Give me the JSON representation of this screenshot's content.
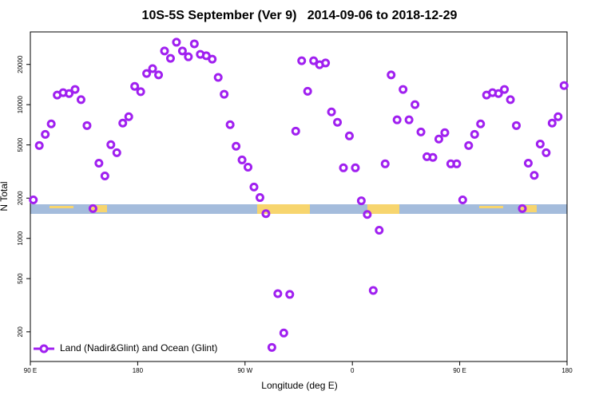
{
  "chart_data": {
    "type": "scatter",
    "title": "10S-5S September (Ver 9)   2014-09-06 to 2018-12-29",
    "x_label": "Longitude (deg E)",
    "y_label": "N Total",
    "log_y": true,
    "legend_corner": "bottom left",
    "xlim": [
      90,
      540
    ],
    "ylim": [
      120,
      35000
    ],
    "xticks": [
      {
        "value": 90,
        "label": "90 E"
      },
      180,
      {
        "value": 270,
        "label": "90 W"
      },
      {
        "value": 360,
        "label": "0"
      },
      {
        "value": 450,
        "label": "90 E"
      },
      {
        "value": 540,
        "label": "180"
      }
    ],
    "yticks": [
      200,
      500,
      1000,
      2000,
      5000,
      10000,
      20000
    ],
    "series": [
      {
        "name": "Land (Nadir&Glint) and Ocean (Glint)",
        "color": "#a020f0",
        "x": [
          92.5,
          97.5,
          102.5,
          107.5,
          112.5,
          117.5,
          122.5,
          127.5,
          132.5,
          137.5,
          142.5,
          147.5,
          152.5,
          157.5,
          162.5,
          167.5,
          172.5,
          177.5,
          182.5,
          187.5,
          192.5,
          197.5,
          202.5,
          207.5,
          212.5,
          217.5,
          222.5,
          227.5,
          232.5,
          237.5,
          242.5,
          247.5,
          252.5,
          257.5,
          262.5,
          267.5,
          272.5,
          277.5,
          282.5,
          287.5,
          292.5,
          297.5,
          302.5,
          307.5,
          312.5,
          317.5,
          322.5,
          327.5,
          332.5,
          337.5,
          342.5,
          347.5,
          352.5,
          357.5,
          362.5,
          367.5,
          372.5,
          377.5,
          382.5,
          387.5,
          392.5,
          397.5,
          402.5,
          407.5,
          412.5,
          417.5,
          422.5,
          427.5,
          432.5,
          437.5,
          442.5,
          447.5,
          452.5,
          457.5,
          462.5,
          467.5,
          472.5,
          477.5,
          482.5,
          487.5,
          492.5,
          497.5,
          502.5,
          507.5,
          512.5,
          517.5,
          522.5,
          527.5,
          532.5,
          537.5
        ],
        "values": [
          1940,
          4950,
          6000,
          7180,
          11800,
          12300,
          12100,
          13000,
          10900,
          6980,
          1670,
          3650,
          2930,
          5020,
          4370,
          7280,
          8130,
          13700,
          12500,
          17100,
          18600,
          16700,
          25200,
          22200,
          29300,
          25200,
          22800,
          28500,
          23800,
          23200,
          21900,
          16000,
          11970,
          7080,
          4890,
          3860,
          3410,
          2420,
          2020,
          1530,
          153,
          386,
          196,
          381,
          6340,
          21300,
          12600,
          21300,
          19900,
          20500,
          8830,
          7380,
          3370,
          5840,
          3370,
          1910,
          1510,
          408,
          1150,
          3610,
          16700,
          7700,
          13000,
          7700,
          10000,
          6250,
          4080,
          4030,
          5530,
          6170,
          3610,
          3610,
          1940,
          4950,
          6000,
          7180,
          11800,
          12300,
          12100,
          13000,
          10900,
          6980,
          1670,
          3650,
          2960,
          5080,
          4370,
          7280,
          8130,
          13900
        ]
      }
    ]
  }
}
